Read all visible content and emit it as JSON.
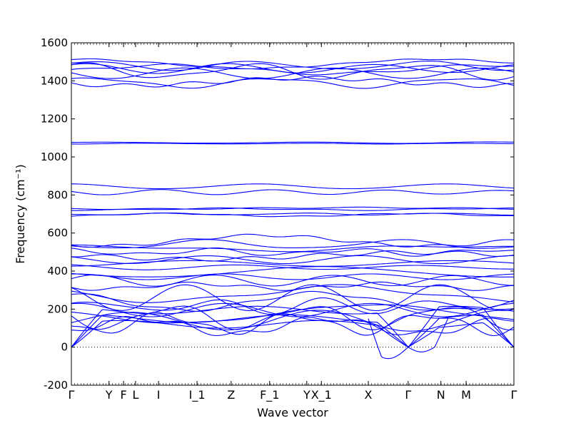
{
  "chart_data": {
    "type": "line",
    "xlabel": "Wave vector",
    "ylabel": "Frequency (cm⁻¹)",
    "ylim": [
      -200,
      1600
    ],
    "yticks": [
      -200,
      0,
      200,
      400,
      600,
      800,
      1000,
      1200,
      1400,
      1600
    ],
    "high_symbol_points": [
      {
        "label": "Γ",
        "x": 0.0
      },
      {
        "label": "Y",
        "x": 0.085
      },
      {
        "label": "F",
        "x": 0.118
      },
      {
        "label": "L",
        "x": 0.145
      },
      {
        "label": "I",
        "x": 0.197
      },
      {
        "label": "I_1",
        "x": 0.284
      },
      {
        "label": "Z",
        "x": 0.361
      },
      {
        "label": "F_1",
        "x": 0.448
      },
      {
        "label": "Y",
        "x": 0.532
      },
      {
        "label": "X_1",
        "x": 0.565
      },
      {
        "label": "X",
        "x": 0.671
      },
      {
        "label": "Γ",
        "x": 0.761
      },
      {
        "label": "N",
        "x": 0.835
      },
      {
        "label": "M",
        "x": 0.892
      },
      {
        "label": "Γ",
        "x": 1.0
      }
    ],
    "zero_line": 0,
    "series_color": "#0000ff",
    "band_groups": [
      {
        "group": "high",
        "base": [
          1390,
          1395,
          1440,
          1450,
          1460,
          1465,
          1480,
          1490
        ],
        "amp": 35
      },
      {
        "group": "upper-mid",
        "base": [
          1070,
          1075
        ],
        "amp": 4
      },
      {
        "group": "mid1",
        "base": [
          815,
          845
        ],
        "amp": 15
      },
      {
        "group": "mid2",
        "base": [
          695,
          700,
          725,
          730
        ],
        "amp": 8
      },
      {
        "group": "optical",
        "base": [
          320,
          350,
          370,
          395,
          420,
          440,
          460,
          480,
          500,
          520,
          540,
          560
        ],
        "amp": 30
      },
      {
        "group": "low",
        "base": [
          110,
          125,
          140,
          160,
          175,
          195,
          215,
          240,
          260,
          280
        ],
        "amp": 60
      }
    ],
    "acoustic": {
      "gamma_value": 0,
      "min_value": -60
    }
  }
}
